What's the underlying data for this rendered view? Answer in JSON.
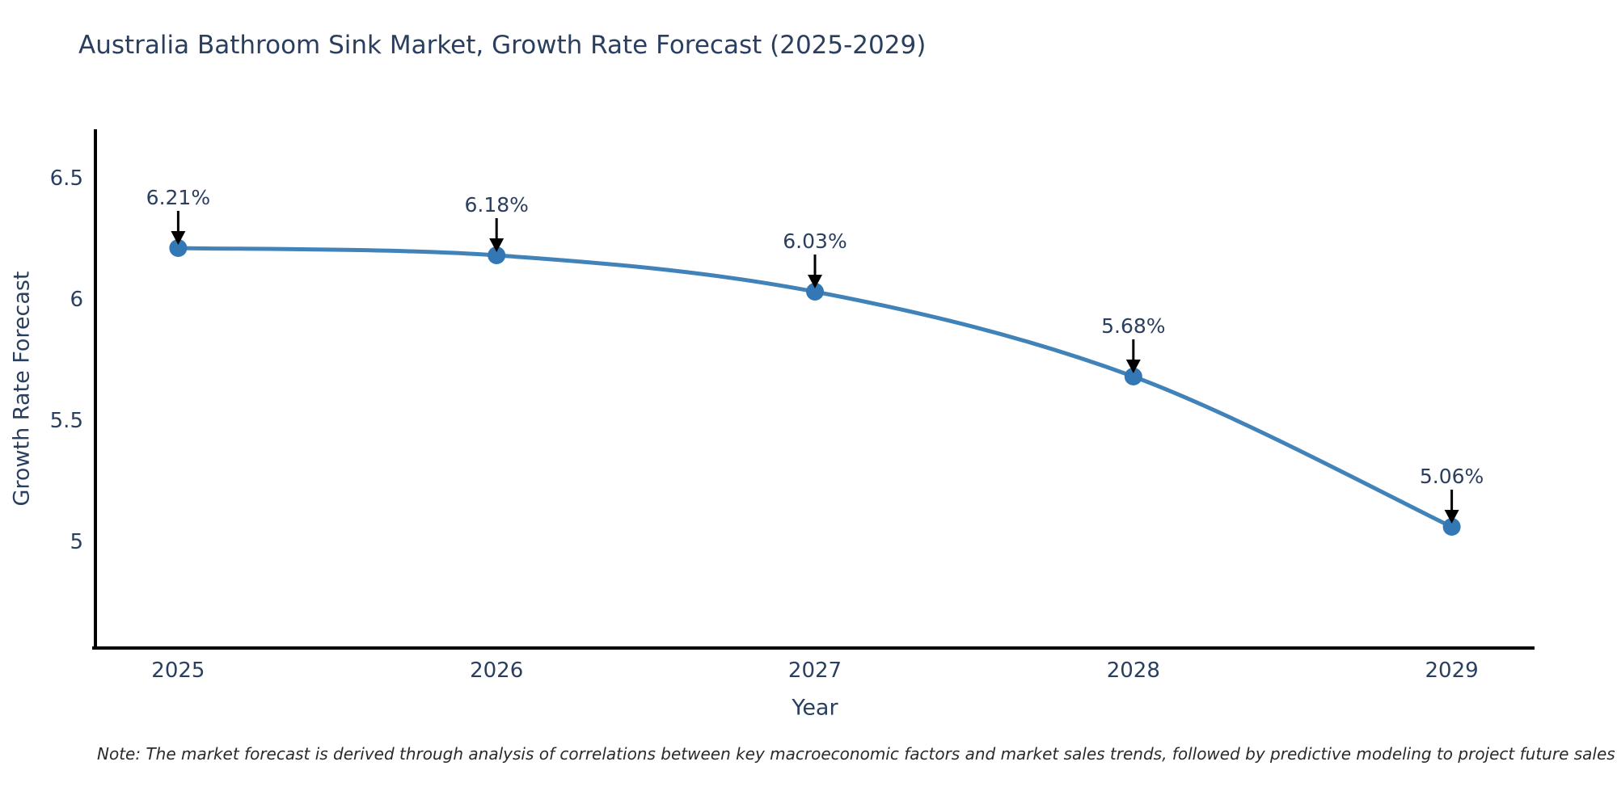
{
  "chart": {
    "title": "Australia Bathroom Sink Market, Growth Rate Forecast (2025-2029)",
    "y_axis_title": "Growth Rate Forecast",
    "x_axis_title": "Year",
    "note": "Note: The market forecast is derived through analysis of correlations between key macroeconomic factors and market sales trends, followed by predictive modeling to project future sales"
  },
  "chart_data": {
    "type": "line",
    "title": "Australia Bathroom Sink Market, Growth Rate Forecast (2025-2029)",
    "xlabel": "Year",
    "ylabel": "Growth Rate Forecast",
    "x": [
      2025,
      2026,
      2027,
      2028,
      2029
    ],
    "y": [
      6.21,
      6.18,
      6.03,
      5.68,
      5.06
    ],
    "point_labels": [
      "6.21%",
      "6.18%",
      "6.03%",
      "5.68%",
      "5.06%"
    ],
    "x_tick_labels": [
      "2025",
      "2026",
      "2027",
      "2028",
      "2029"
    ],
    "y_tick_values": [
      5,
      5.5,
      6,
      6.5
    ],
    "y_tick_labels": [
      "5",
      "5.5",
      "6",
      "6.5"
    ],
    "xlim": [
      2024.74,
      2029.26
    ],
    "ylim": [
      4.56,
      6.7
    ],
    "grid": false,
    "legend": false,
    "annotation_style": "black-arrow-down-to-point",
    "line_shape": "spline",
    "colors": {
      "line": "#4183b8",
      "marker": "#3377b4",
      "arrow": "#000000",
      "axis": "#000000",
      "tick_text": "#2a3f5f",
      "label_text": "#2a3f5f",
      "note_text": "#2a2a2a",
      "background": "#ffffff"
    }
  }
}
